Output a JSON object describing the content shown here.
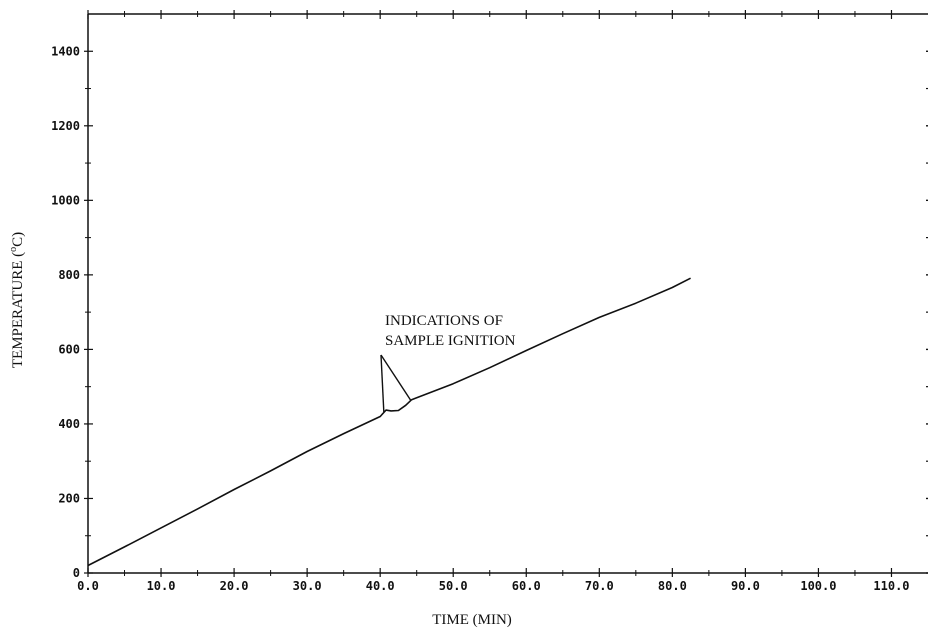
{
  "chart_data": {
    "type": "line",
    "xlabel": "TIME (MIN)",
    "ylabel": "TEMPERATURE (°C)",
    "ylabel_main": "TEMPERATURE (",
    "ylabel_sup": "o",
    "ylabel_end": "C)",
    "xlim": [
      0,
      115
    ],
    "ylim": [
      0,
      1500
    ],
    "x_ticks": [
      0,
      10,
      20,
      30,
      40,
      50,
      60,
      70,
      80,
      90,
      100,
      110
    ],
    "x_tick_labels": [
      "0.0",
      "10.0",
      "20.0",
      "30.0",
      "40.0",
      "50.0",
      "60.0",
      "70.0",
      "80.0",
      "90.0",
      "100.0",
      "110.0"
    ],
    "y_ticks": [
      0,
      200,
      400,
      600,
      800,
      1000,
      1200,
      1400
    ],
    "y_tick_labels": [
      "0",
      "200",
      "400",
      "600",
      "800",
      "1000",
      "1200",
      "1400"
    ],
    "grid": false,
    "series": [
      {
        "x": [
          0,
          5,
          10,
          15,
          20,
          25,
          30,
          35,
          40,
          40.8,
          41.5,
          42.5,
          43.5,
          44.3,
          45,
          50,
          55,
          60,
          65,
          70,
          75,
          80,
          82.5
        ],
        "y": [
          20,
          70,
          121,
          172,
          224,
          274,
          326,
          374,
          420,
          437,
          435,
          436,
          450,
          465,
          470,
          508,
          551,
          597,
          642,
          686,
          724,
          766,
          791
        ]
      }
    ],
    "annotation": {
      "lines": [
        "INDICATIONS OF",
        "SAMPLE IGNITION"
      ],
      "arrow_targets": [
        [
          40.5,
          432
        ],
        [
          44.2,
          463
        ]
      ]
    }
  }
}
